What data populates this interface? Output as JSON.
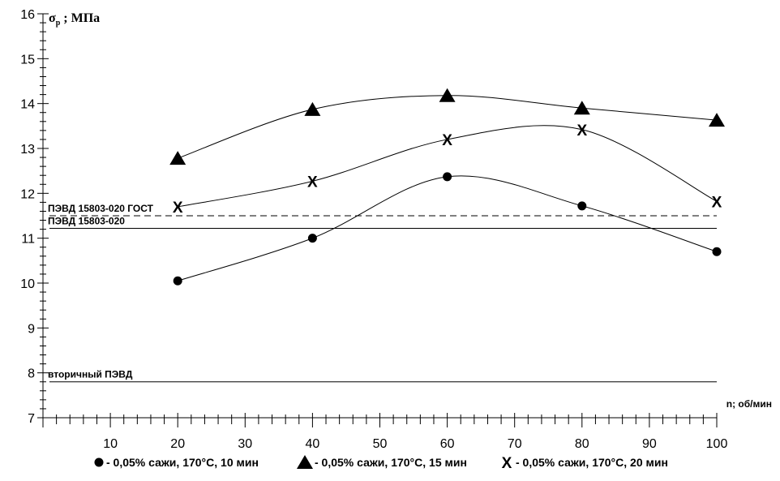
{
  "chart_data": {
    "type": "line",
    "ylabel": "σ",
    "ylabel_sub": "р",
    "ylabel_unit": " ; МПа",
    "xlabel": "n; об/мин",
    "xlim": [
      0,
      100
    ],
    "ylim": [
      7,
      16
    ],
    "x_ticks": [
      10,
      20,
      30,
      40,
      50,
      60,
      70,
      80,
      90,
      100
    ],
    "y_ticks": [
      7,
      8,
      9,
      10,
      11,
      12,
      13,
      14,
      15,
      16
    ],
    "grid": false,
    "legend_position": "bottom",
    "series": [
      {
        "name": "- 0,05% сажи, 170°С, 10 мин",
        "marker": "circle",
        "x": [
          20,
          40,
          60,
          80,
          100
        ],
        "y": [
          10.05,
          11.0,
          12.37,
          11.72,
          10.7
        ]
      },
      {
        "name": "- 0,05% сажи, 170°С, 15 мин",
        "marker": "triangle",
        "x": [
          20,
          40,
          60,
          80,
          100
        ],
        "y": [
          12.78,
          13.87,
          14.18,
          13.9,
          13.63
        ]
      },
      {
        "name": "- 0,05% сажи, 170°С, 20 мин",
        "marker": "x",
        "x": [
          20,
          40,
          60,
          80,
          100
        ],
        "y": [
          11.7,
          12.27,
          13.2,
          13.42,
          11.82
        ]
      }
    ],
    "reference_lines": [
      {
        "label": "ПЭВД 15803-020 ГОСТ",
        "y": 11.5,
        "style": "dashed"
      },
      {
        "label": "ПЭВД 15803-020",
        "y": 11.22,
        "style": "solid"
      },
      {
        "label": "вторичный ПЭВД",
        "y": 7.8,
        "style": "solid"
      }
    ]
  }
}
